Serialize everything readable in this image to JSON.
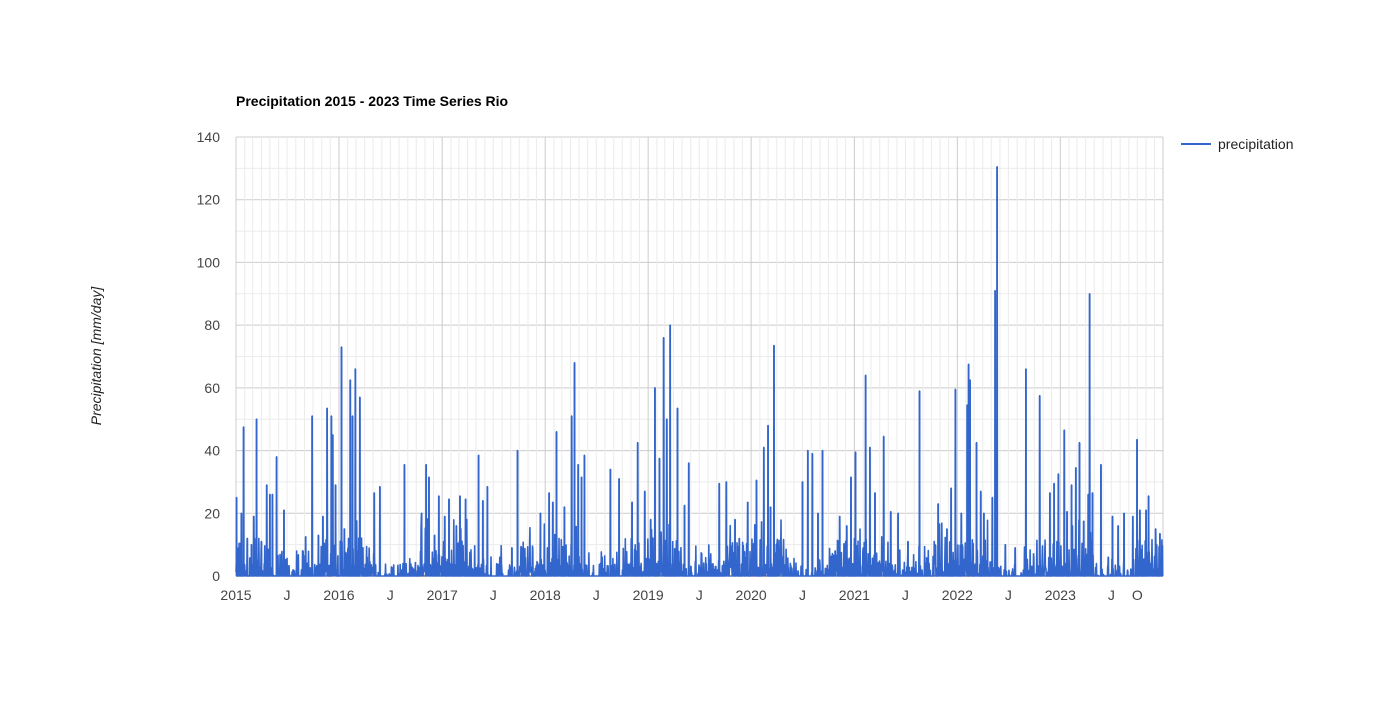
{
  "chart_data": {
    "type": "line",
    "title": "Precipitation 2015 - 2023 Time Series  Rio",
    "ylabel": "Precipitation [mm/day]",
    "xlabel": "",
    "ylim": [
      0,
      140
    ],
    "yticks": [
      0,
      20,
      40,
      60,
      80,
      100,
      120,
      140
    ],
    "xlim": [
      "2015-01-01",
      "2023-12-31"
    ],
    "xticks": [
      {
        "label": "2015",
        "date": "2015-01-01"
      },
      {
        "label": "J",
        "date": "2015-07-01"
      },
      {
        "label": "2016",
        "date": "2016-01-01"
      },
      {
        "label": "J",
        "date": "2016-07-01"
      },
      {
        "label": "2017",
        "date": "2017-01-01"
      },
      {
        "label": "J",
        "date": "2017-07-01"
      },
      {
        "label": "2018",
        "date": "2018-01-01"
      },
      {
        "label": "J",
        "date": "2018-07-01"
      },
      {
        "label": "2019",
        "date": "2019-01-01"
      },
      {
        "label": "J",
        "date": "2019-07-01"
      },
      {
        "label": "2020",
        "date": "2020-01-01"
      },
      {
        "label": "J",
        "date": "2020-07-01"
      },
      {
        "label": "2021",
        "date": "2021-01-01"
      },
      {
        "label": "J",
        "date": "2021-07-01"
      },
      {
        "label": "2022",
        "date": "2022-01-01"
      },
      {
        "label": "J",
        "date": "2022-07-01"
      },
      {
        "label": "2023",
        "date": "2023-01-01"
      },
      {
        "label": "J",
        "date": "2023-07-01"
      },
      {
        "label": "O",
        "date": "2023-10-01"
      }
    ],
    "grid": true,
    "legend": {
      "position": "right",
      "entries": [
        "precipitation"
      ]
    },
    "series": [
      {
        "name": "precipitation",
        "color": "#3366cc",
        "peaks": [
          [
            "2015-01-03",
            25
          ],
          [
            "2015-01-20",
            20
          ],
          [
            "2015-01-28",
            47.5
          ],
          [
            "2015-02-10",
            12
          ],
          [
            "2015-02-25",
            10
          ],
          [
            "2015-03-05",
            19
          ],
          [
            "2015-03-15",
            50
          ],
          [
            "2015-04-01",
            11
          ],
          [
            "2015-04-20",
            29
          ],
          [
            "2015-05-01",
            26
          ],
          [
            "2015-05-10",
            26
          ],
          [
            "2015-05-25",
            38
          ],
          [
            "2015-06-20",
            21
          ],
          [
            "2015-09-05",
            12.5
          ],
          [
            "2015-09-28",
            51
          ],
          [
            "2015-10-20",
            13
          ],
          [
            "2015-11-05",
            19
          ],
          [
            "2015-11-20",
            53.5
          ],
          [
            "2015-12-05",
            51
          ],
          [
            "2015-12-10",
            45
          ],
          [
            "2015-12-20",
            29
          ],
          [
            "2016-01-10",
            73
          ],
          [
            "2016-01-20",
            15
          ],
          [
            "2016-02-10",
            62.5
          ],
          [
            "2016-02-18",
            51
          ],
          [
            "2016-02-28",
            66
          ],
          [
            "2016-03-15",
            57
          ],
          [
            "2016-04-10",
            6
          ],
          [
            "2016-05-05",
            26.5
          ],
          [
            "2016-05-25",
            28.5
          ],
          [
            "2016-08-20",
            35.5
          ],
          [
            "2016-10-20",
            20
          ],
          [
            "2016-11-05",
            35.5
          ],
          [
            "2016-11-15",
            31.5
          ],
          [
            "2016-12-05",
            13
          ],
          [
            "2016-12-20",
            25.5
          ],
          [
            "2017-01-10",
            19
          ],
          [
            "2017-01-25",
            24.5
          ],
          [
            "2017-02-20",
            16
          ],
          [
            "2017-03-05",
            25.5
          ],
          [
            "2017-03-25",
            24.5
          ],
          [
            "2017-05-10",
            38.5
          ],
          [
            "2017-05-25",
            24
          ],
          [
            "2017-06-10",
            28.5
          ],
          [
            "2017-07-25",
            6
          ],
          [
            "2017-09-05",
            9
          ],
          [
            "2017-09-25",
            40
          ],
          [
            "2017-12-15",
            20
          ],
          [
            "2018-01-15",
            26.5
          ],
          [
            "2018-01-28",
            23.5
          ],
          [
            "2018-02-10",
            46
          ],
          [
            "2018-03-10",
            22
          ],
          [
            "2018-04-05",
            51
          ],
          [
            "2018-04-15",
            68
          ],
          [
            "2018-04-28",
            35.5
          ],
          [
            "2018-05-10",
            31.5
          ],
          [
            "2018-05-20",
            38.5
          ],
          [
            "2018-08-20",
            34
          ],
          [
            "2018-09-20",
            31
          ],
          [
            "2018-11-05",
            23.5
          ],
          [
            "2018-11-25",
            42.5
          ],
          [
            "2018-12-20",
            27
          ],
          [
            "2019-01-10",
            18
          ],
          [
            "2019-01-25",
            60
          ],
          [
            "2019-02-10",
            37.5
          ],
          [
            "2019-02-25",
            76
          ],
          [
            "2019-03-08",
            50
          ],
          [
            "2019-03-20",
            80
          ],
          [
            "2019-04-15",
            53.5
          ],
          [
            "2019-05-10",
            22.5
          ],
          [
            "2019-05-25",
            36
          ],
          [
            "2019-08-10",
            4.5
          ],
          [
            "2019-09-10",
            29.5
          ],
          [
            "2019-10-05",
            30
          ],
          [
            "2019-11-05",
            18
          ],
          [
            "2019-11-20",
            12
          ],
          [
            "2019-12-20",
            23.5
          ],
          [
            "2020-01-20",
            30.5
          ],
          [
            "2020-02-15",
            41
          ],
          [
            "2020-03-01",
            48
          ],
          [
            "2020-03-10",
            22
          ],
          [
            "2020-03-22",
            73.5
          ],
          [
            "2020-07-01",
            30
          ],
          [
            "2020-07-20",
            40
          ],
          [
            "2020-08-05",
            39
          ],
          [
            "2020-08-25",
            20
          ],
          [
            "2020-09-10",
            40
          ],
          [
            "2020-10-25",
            8
          ],
          [
            "2020-11-10",
            19
          ],
          [
            "2020-12-05",
            16
          ],
          [
            "2020-12-20",
            31.5
          ],
          [
            "2021-01-05",
            39.5
          ],
          [
            "2021-02-10",
            64
          ],
          [
            "2021-02-25",
            41
          ],
          [
            "2021-03-15",
            26.5
          ],
          [
            "2021-04-15",
            44.5
          ],
          [
            "2021-05-10",
            20.5
          ],
          [
            "2021-06-05",
            20
          ],
          [
            "2021-07-10",
            11
          ],
          [
            "2021-08-20",
            59
          ],
          [
            "2021-09-10",
            4
          ],
          [
            "2021-10-25",
            23
          ],
          [
            "2021-11-25",
            15
          ],
          [
            "2021-12-10",
            28
          ],
          [
            "2021-12-25",
            59.5
          ],
          [
            "2022-01-15",
            20
          ],
          [
            "2022-02-05",
            54.5
          ],
          [
            "2022-02-10",
            67.5
          ],
          [
            "2022-02-15",
            62.5
          ],
          [
            "2022-03-10",
            42.5
          ],
          [
            "2022-03-25",
            27
          ],
          [
            "2022-04-05",
            20
          ],
          [
            "2022-05-05",
            25
          ],
          [
            "2022-05-15",
            91
          ],
          [
            "2022-05-22",
            130.5
          ],
          [
            "2022-06-20",
            10
          ],
          [
            "2022-07-25",
            9
          ],
          [
            "2022-09-01",
            66
          ],
          [
            "2022-10-20",
            57.5
          ],
          [
            "2022-11-25",
            26.5
          ],
          [
            "2022-12-10",
            29.5
          ],
          [
            "2022-12-25",
            32.5
          ],
          [
            "2023-01-15",
            46.5
          ],
          [
            "2023-01-25",
            20.5
          ],
          [
            "2023-02-10",
            29
          ],
          [
            "2023-02-25",
            34.5
          ],
          [
            "2023-03-10",
            42.5
          ],
          [
            "2023-03-25",
            17.5
          ],
          [
            "2023-04-10",
            26
          ],
          [
            "2023-04-15",
            90
          ],
          [
            "2023-04-25",
            26.5
          ],
          [
            "2023-05-25",
            35.5
          ],
          [
            "2023-06-20",
            6
          ],
          [
            "2023-07-05",
            19
          ],
          [
            "2023-07-25",
            16
          ],
          [
            "2023-08-15",
            20
          ],
          [
            "2023-09-15",
            19
          ],
          [
            "2023-09-30",
            43.5
          ],
          [
            "2023-10-10",
            21
          ],
          [
            "2023-11-01",
            21
          ],
          [
            "2023-11-10",
            25.5
          ],
          [
            "2023-12-05",
            15
          ],
          [
            "2023-12-20",
            13.5
          ]
        ]
      }
    ]
  }
}
